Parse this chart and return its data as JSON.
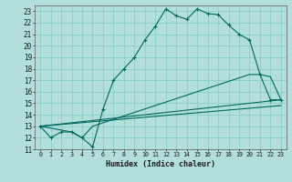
{
  "xlabel": "Humidex (Indice chaleur)",
  "bg_color": "#b2dfdb",
  "grid_color": "#80cbc4",
  "line_color": "#00695c",
  "xlim": [
    -0.5,
    23.5
  ],
  "ylim": [
    11,
    23.5
  ],
  "xticks": [
    0,
    1,
    2,
    3,
    4,
    5,
    6,
    7,
    8,
    9,
    10,
    11,
    12,
    13,
    14,
    15,
    16,
    17,
    18,
    19,
    20,
    21,
    22,
    23
  ],
  "yticks": [
    11,
    12,
    13,
    14,
    15,
    16,
    17,
    18,
    19,
    20,
    21,
    22,
    23
  ],
  "line1_x": [
    0,
    1,
    2,
    3,
    4,
    5,
    6,
    7,
    8,
    9,
    10,
    11,
    12,
    13,
    14,
    15,
    16,
    17,
    18,
    19,
    20,
    21,
    22,
    23
  ],
  "line1_y": [
    13,
    12,
    12.5,
    12.5,
    12,
    11.2,
    14.5,
    17,
    18,
    19,
    20.5,
    21.7,
    23.2,
    22.6,
    22.3,
    23.2,
    22.8,
    22.7,
    21.8,
    21.0,
    20.5,
    17.5,
    15.3,
    15.3
  ],
  "line2_x": [
    0,
    3,
    4,
    5,
    20,
    21,
    22,
    23
  ],
  "line2_y": [
    13,
    12.5,
    12,
    13,
    17.5,
    17.5,
    17.3,
    15.3
  ],
  "line3_x": [
    0,
    23
  ],
  "line3_y": [
    13,
    15.3
  ],
  "line4_x": [
    0,
    23
  ],
  "line4_y": [
    13,
    15.3
  ]
}
